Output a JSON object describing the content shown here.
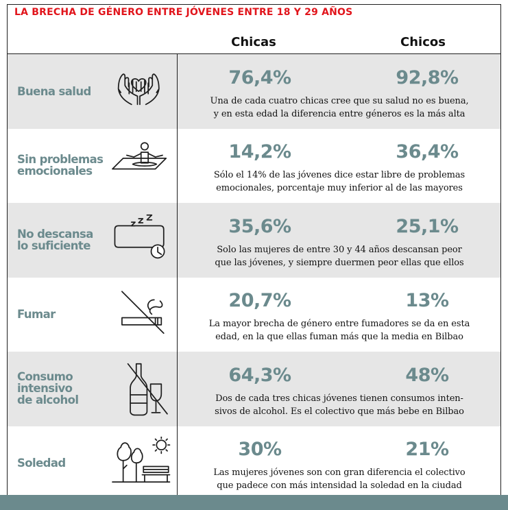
{
  "chart_data": {
    "type": "table",
    "title": "LA BRECHA DE GÉNERO ENTRE JÓVENES ENTRE 18 Y 29 AÑOS",
    "columns": [
      "Chicas",
      "Chicos"
    ],
    "rows": [
      {
        "label_lines": [
          "Buena salud"
        ],
        "icon": "hands-heart-icon",
        "chicas": "76,4%",
        "chicos": "92,8%",
        "note_lines": [
          "Una de cada cuatro chicas cree que su salud no es buena,",
          "y en esta edad la diferencia entre géneros es la más alta"
        ]
      },
      {
        "label_lines": [
          "Sin problemas",
          "emocionales"
        ],
        "icon": "meditation-icon",
        "chicas": "14,2%",
        "chicos": "36,4%",
        "note_lines": [
          "Sólo el 14% de las jóvenes dice estar libre de problemas",
          "emocionales, porcentaje muy inferior al de las mayores"
        ]
      },
      {
        "label_lines": [
          "No descansa",
          "lo suficiente"
        ],
        "icon": "sleep-clock-icon",
        "chicas": "35,6%",
        "chicos": "25,1%",
        "note_lines": [
          "Solo las mujeres de entre 30 y 44 años descansan peor",
          "que las jóvenes, y siempre duermen peor ellas que ellos"
        ]
      },
      {
        "label_lines": [
          "Fumar"
        ],
        "icon": "no-smoking-icon",
        "chicas": "20,7%",
        "chicos": "13%",
        "note_lines": [
          "La mayor brecha de género entre fumadores se da en esta",
          "edad, en la que ellas fuman más que la media en Bilbao"
        ]
      },
      {
        "label_lines": [
          "Consumo",
          "intensivo",
          "de alcohol"
        ],
        "icon": "no-alcohol-icon",
        "chicas": "64,3%",
        "chicos": "48%",
        "note_lines": [
          "Dos de cada tres chicas jóvenes tienen consumos inten-",
          "sivos de alcohol. Es el colectivo que más bebe en Bilbao"
        ]
      },
      {
        "label_lines": [
          "Soledad"
        ],
        "icon": "park-bench-icon",
        "chicas": "30%",
        "chicos": "21%",
        "note_lines": [
          "Las mujeres jóvenes son con gran diferencia el colectivo",
          "que padece con más intensidad la soledad en la ciudad"
        ]
      }
    ]
  }
}
